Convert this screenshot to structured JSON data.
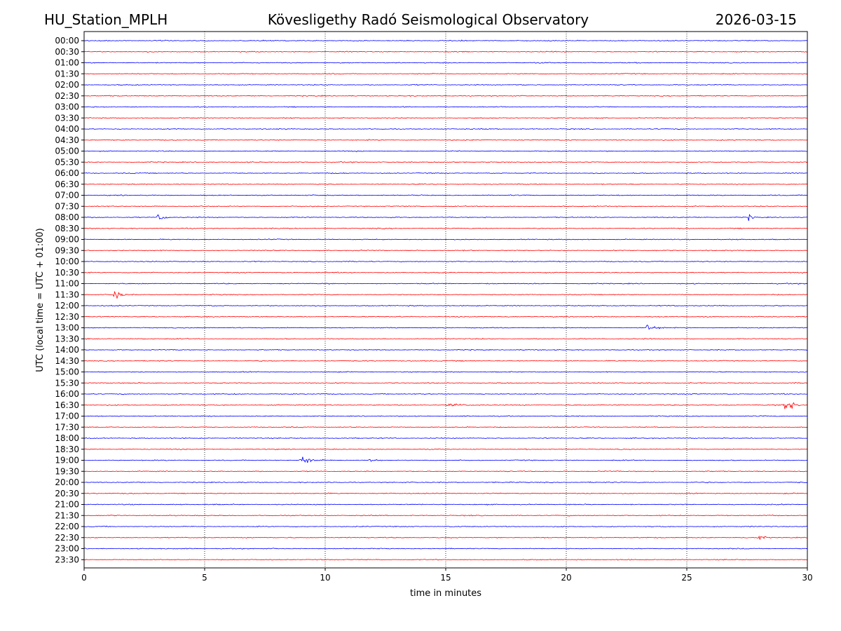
{
  "header": {
    "station": "HU_Station_MPLH",
    "observatory": "Kövesligethy Radó Seismological Observatory",
    "date": "2026-03-15"
  },
  "chart_data": {
    "type": "line",
    "subtype": "helicorder",
    "xlabel": "time in minutes",
    "ylabel": "UTC (local time = UTC + 01:00)",
    "xlim": [
      0,
      30
    ],
    "x_ticks": [
      0,
      5,
      10,
      15,
      20,
      25,
      30
    ],
    "x_tick_labels": [
      "0",
      "5",
      "10",
      "15",
      "20",
      "25",
      "30"
    ],
    "vertical_grid": "dotted at each x tick",
    "trace_colors": [
      "#0000ff",
      "#ff0000"
    ],
    "row_labels": [
      "00:00",
      "00:30",
      "01:00",
      "01:30",
      "02:00",
      "02:30",
      "03:00",
      "03:30",
      "04:00",
      "04:30",
      "05:00",
      "05:30",
      "06:00",
      "06:30",
      "07:00",
      "07:30",
      "08:00",
      "08:30",
      "09:00",
      "09:30",
      "10:00",
      "10:30",
      "11:00",
      "11:30",
      "12:00",
      "12:30",
      "13:00",
      "13:30",
      "14:00",
      "14:30",
      "15:00",
      "15:30",
      "16:00",
      "16:30",
      "17:00",
      "17:30",
      "18:00",
      "18:30",
      "19:00",
      "19:30",
      "20:00",
      "20:30",
      "21:00",
      "21:30",
      "22:00",
      "22:30",
      "23:00",
      "23:30"
    ],
    "events": [
      {
        "row": "08:00",
        "start_min": 3.0,
        "end_min": 3.6,
        "amplitude": 2.6
      },
      {
        "row": "08:00",
        "start_min": 27.5,
        "end_min": 28.0,
        "amplitude": 1.1
      },
      {
        "row": "11:30",
        "start_min": 1.2,
        "end_min": 1.7,
        "amplitude": 3.2
      },
      {
        "row": "13:00",
        "start_min": 23.2,
        "end_min": 24.2,
        "amplitude": 1.2
      },
      {
        "row": "16:30",
        "start_min": 28.9,
        "end_min": 29.9,
        "amplitude": 3.0
      },
      {
        "row": "16:30",
        "start_min": 15.0,
        "end_min": 16.2,
        "amplitude": 0.8
      },
      {
        "row": "19:00",
        "start_min": 8.9,
        "end_min": 10.0,
        "amplitude": 1.5
      },
      {
        "row": "19:00",
        "start_min": 11.8,
        "end_min": 12.5,
        "amplitude": 0.7
      },
      {
        "row": "22:30",
        "start_min": 27.9,
        "end_min": 28.5,
        "amplitude": 1.1
      }
    ]
  }
}
